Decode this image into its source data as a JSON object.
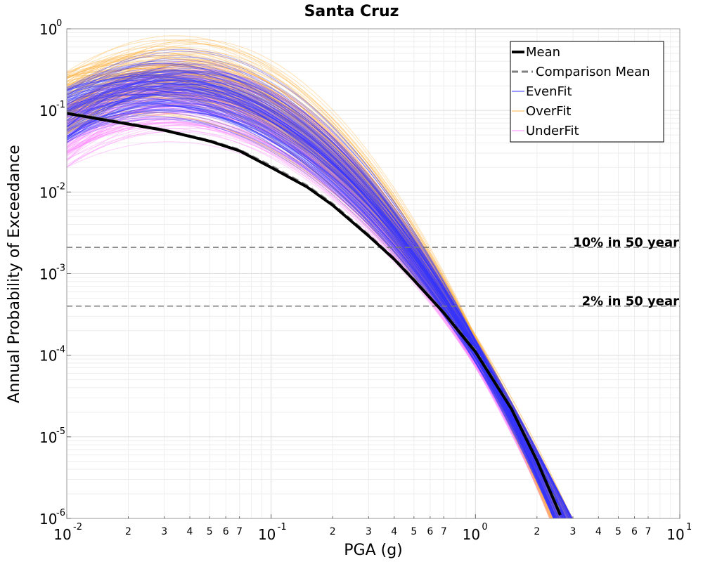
{
  "chart_data": {
    "type": "line",
    "title": "Santa Cruz",
    "xlabel": "PGA (g)",
    "ylabel": "Annual Probability of Exceedance",
    "xscale": "log",
    "yscale": "log",
    "xlim": [
      0.01,
      10
    ],
    "ylim": [
      1e-06,
      1
    ],
    "grid": true,
    "x_ticks": [
      {
        "base": "10",
        "exp": "-2"
      },
      {
        "base": "10",
        "exp": "-1"
      },
      {
        "base": "10",
        "exp": "0"
      },
      {
        "base": "10",
        "exp": "1"
      }
    ],
    "y_ticks": [
      {
        "base": "10",
        "exp": "0"
      },
      {
        "base": "10",
        "exp": "-1"
      },
      {
        "base": "10",
        "exp": "-2"
      },
      {
        "base": "10",
        "exp": "-3"
      },
      {
        "base": "10",
        "exp": "-4"
      },
      {
        "base": "10",
        "exp": "-5"
      },
      {
        "base": "10",
        "exp": "-6"
      }
    ],
    "minor_tick_labels": [
      "2",
      "3",
      "4",
      "5",
      "6",
      "7"
    ],
    "legend_position": "top-right",
    "legend": [
      {
        "name": "Mean",
        "color": "#000000",
        "style": "solid-thick"
      },
      {
        "name": "Comparison Mean",
        "color": "#808080",
        "style": "dashed"
      },
      {
        "name": "EvenFit",
        "color": "#3333ff",
        "style": "solid"
      },
      {
        "name": "OverFit",
        "color": "#ffb347",
        "style": "solid"
      },
      {
        "name": "UnderFit",
        "color": "#ff88ff",
        "style": "solid"
      }
    ],
    "horizontal_lines": [
      {
        "label": "10% in 50 year",
        "y": 0.0021
      },
      {
        "label": "2% in 50 year",
        "y": 0.0004
      }
    ],
    "series": [
      {
        "name": "Mean",
        "x": [
          0.01,
          0.02,
          0.03,
          0.05,
          0.07,
          0.1,
          0.15,
          0.2,
          0.3,
          0.4,
          0.5,
          0.7,
          1.0,
          1.5,
          2.0,
          2.6
        ],
        "y": [
          0.092,
          0.068,
          0.057,
          0.042,
          0.032,
          0.02,
          0.0115,
          0.0069,
          0.0029,
          0.0015,
          0.00083,
          0.00033,
          0.00011,
          2.2e-05,
          5.1e-06,
          1.1e-06
        ]
      },
      {
        "name": "Comparison Mean",
        "x": [
          0.01,
          0.02,
          0.03,
          0.05,
          0.07,
          0.1,
          0.15,
          0.2,
          0.3,
          0.4,
          0.5,
          0.7,
          1.0,
          1.5,
          2.0,
          2.6
        ],
        "y": [
          0.095,
          0.07,
          0.058,
          0.043,
          0.033,
          0.021,
          0.012,
          0.0072,
          0.003,
          0.00155,
          0.00086,
          0.00034,
          0.000115,
          2.3e-05,
          5.3e-06,
          1.2e-06
        ]
      }
    ],
    "branch_bands": [
      {
        "name": "EvenFit",
        "y_at_min_x_range": [
          0.04,
          0.2
        ],
        "y_at_1g_range": [
          8e-05,
          0.00016
        ],
        "x_at_ymin_range": [
          2.4,
          3.0
        ]
      },
      {
        "name": "OverFit",
        "y_at_min_x_range": [
          0.05,
          0.3
        ],
        "y_at_1g_range": [
          9e-05,
          0.00018
        ],
        "x_at_ymin_range": [
          2.3,
          3.0
        ]
      },
      {
        "name": "UnderFit",
        "y_at_min_x_range": [
          0.02,
          0.12
        ],
        "y_at_1g_range": [
          7e-05,
          0.00014
        ],
        "x_at_ymin_range": [
          2.3,
          2.8
        ]
      }
    ]
  }
}
